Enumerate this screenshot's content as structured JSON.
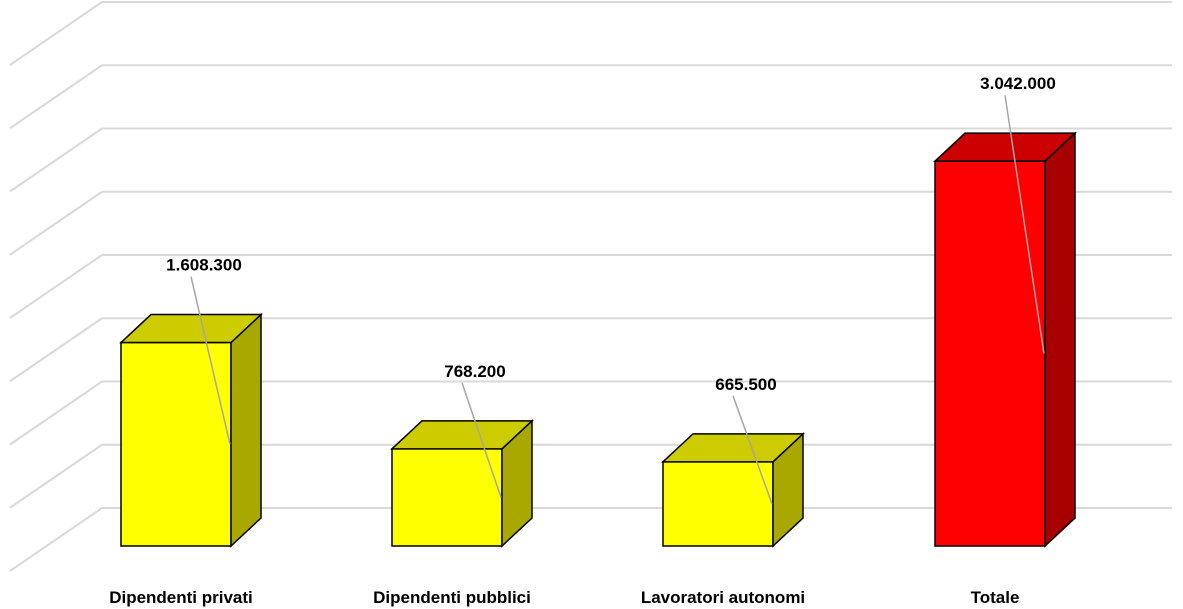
{
  "chart_data": {
    "type": "bar",
    "style": "3d-column",
    "categories": [
      "Dipendenti privati",
      "Dipendenti pubblici",
      "Lavoratori autonomi",
      "Totale"
    ],
    "values": [
      1608300,
      768200,
      665500,
      3042000
    ],
    "data_labels": [
      "1.608.300",
      "768.200",
      "665.500",
      "3.042.000"
    ],
    "colors": [
      "#ffff00",
      "#ffff00",
      "#ffff00",
      "#ff0000"
    ],
    "ylim": [
      0,
      4000000
    ],
    "grid": true,
    "legend": "none",
    "title": "",
    "xlabel": "",
    "ylabel": ""
  }
}
